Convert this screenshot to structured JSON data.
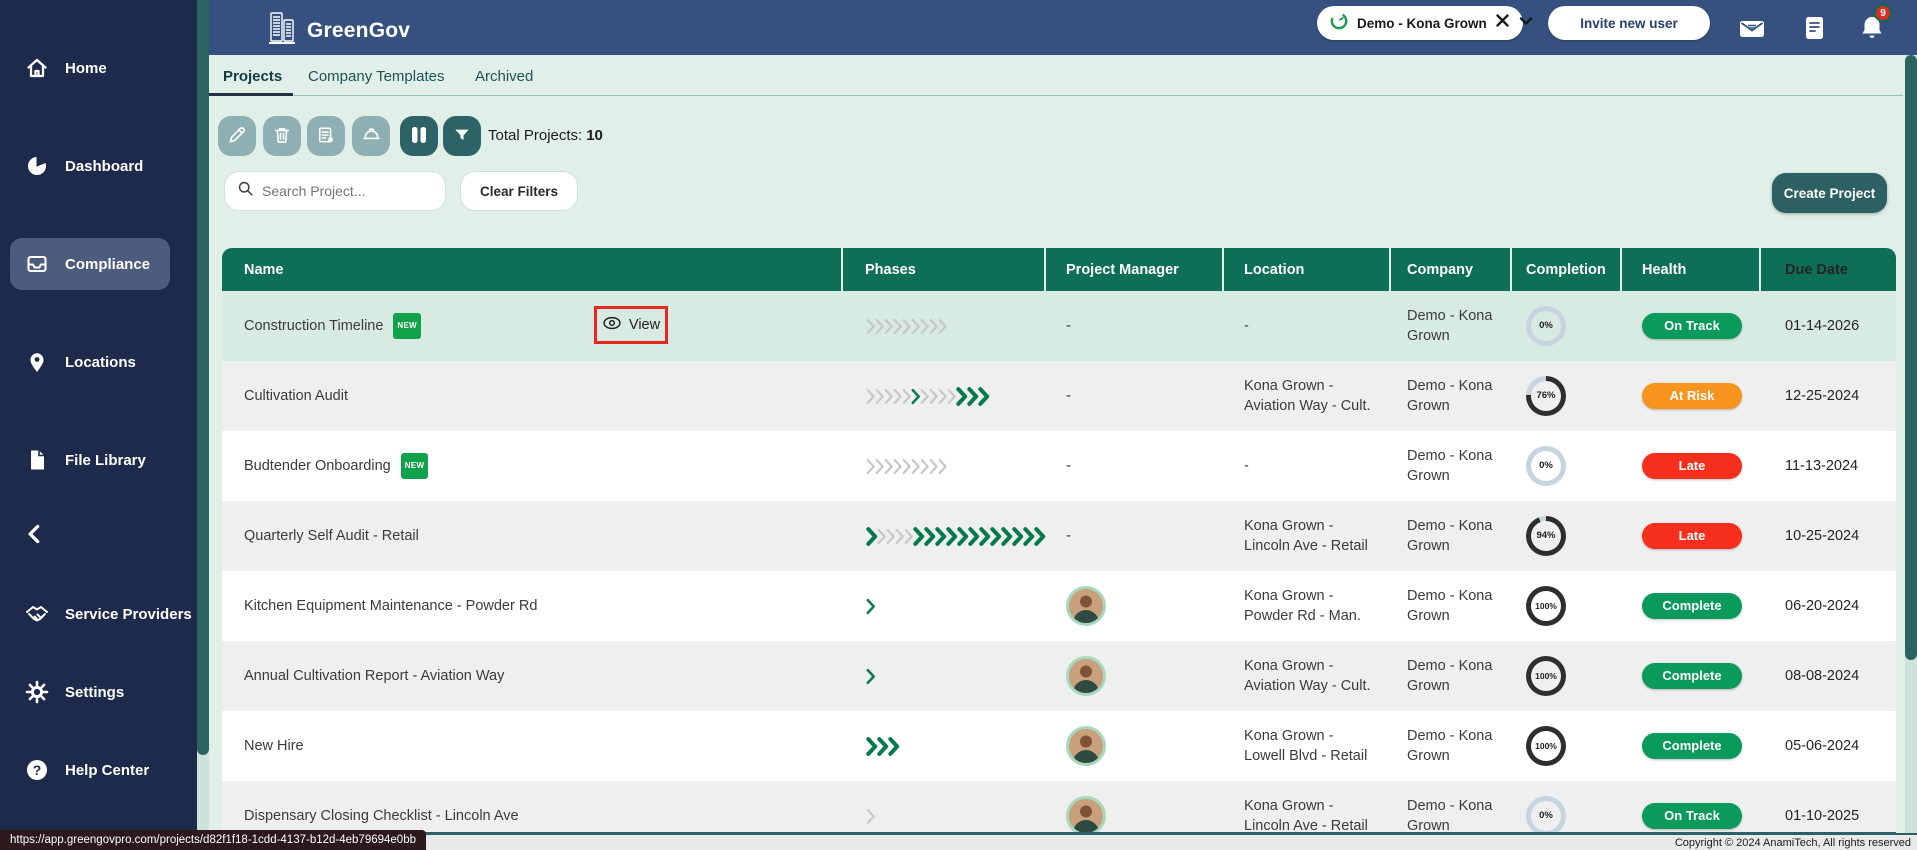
{
  "colors": {
    "sidebar_navy": "#1d2a4b",
    "header_navy": "#36517f",
    "active_item": "#4d5c7d",
    "teal_accent": "#2d6366",
    "muted_button": "#8fb0b3",
    "mint_bg": "#e1efe9",
    "table_header_green": "#0d6f55",
    "row_highlight": "#d8ebe2",
    "health_green": "#0a9a5c",
    "health_orange": "#f7941e",
    "health_red": "#f62e1e",
    "new_badge_green": "#12a14b",
    "annotation_red": "#e8281e",
    "chevron_gray": "#c7c7c7",
    "chevron_green": "#0a7c50",
    "donut_dark": "#2e2e2e",
    "donut_light": "#c7d3df"
  },
  "sidebar": {
    "items": [
      {
        "label": "Home",
        "icon": "home-icon",
        "active": false
      },
      {
        "label": "Dashboard",
        "icon": "dashboard-icon",
        "active": false
      },
      {
        "label": "Compliance",
        "icon": "compliance-icon",
        "active": true
      },
      {
        "label": "Locations",
        "icon": "location-pin-icon",
        "active": false
      },
      {
        "label": "File Library",
        "icon": "file-icon",
        "active": false
      },
      {
        "label": "Service Providers",
        "icon": "handshake-icon",
        "active": false
      },
      {
        "label": "Settings",
        "icon": "gear-icon",
        "active": false
      },
      {
        "label": "Help Center",
        "icon": "help-icon",
        "active": false
      }
    ],
    "collapse_icon": "chevron-left-icon"
  },
  "header": {
    "app_name": "GreenGov",
    "logo_icon": "buildings-icon",
    "company_selector": {
      "icon": "green-leaf-logo",
      "label": "Demo - Kona Grown",
      "close_icon": "close-icon",
      "chevron_icon": "chevron-down-icon"
    },
    "invite_button": "Invite new user",
    "actions": [
      {
        "icon": "mail-icon"
      },
      {
        "icon": "notes-icon"
      },
      {
        "icon": "bell-icon",
        "badge": "9"
      }
    ]
  },
  "tabs": {
    "items": [
      {
        "label": "Projects",
        "active": true
      },
      {
        "label": "Company Templates",
        "active": false
      },
      {
        "label": "Archived",
        "active": false
      }
    ]
  },
  "toolbar": {
    "buttons": [
      {
        "icon": "edit-icon",
        "enabled": false
      },
      {
        "icon": "delete-icon",
        "enabled": false
      },
      {
        "icon": "clipboard-pin-icon",
        "enabled": false
      },
      {
        "icon": "hard-hat-icon",
        "enabled": false
      },
      {
        "icon": "columns-icon",
        "enabled": true
      },
      {
        "icon": "filter-icon",
        "enabled": true
      }
    ],
    "total_label": "Total Projects:",
    "total_value": "10"
  },
  "filters": {
    "search_icon": "search-icon",
    "search_placeholder": "Search Project...",
    "clear_button": "Clear Filters",
    "create_button": "Create Project"
  },
  "new_badge_label": "NEW",
  "table": {
    "columns": [
      "Name",
      "Phases",
      "Project Manager",
      "Location",
      "Company",
      "Completion",
      "Health",
      "Due Date"
    ],
    "rows": [
      {
        "name": "Construction Timeline",
        "new": true,
        "view_button": "View",
        "phases": [
          {
            "count": 9,
            "style": "gray"
          }
        ],
        "manager": "-",
        "location": "-",
        "company": "Demo - Kona Grown",
        "completion": 0,
        "health": {
          "label": "On Track",
          "tone": "green"
        },
        "due": "01-14-2026"
      },
      {
        "name": "Cultivation Audit",
        "new": false,
        "phases": [
          {
            "count": 5,
            "style": "gray"
          },
          {
            "count": 1,
            "style": "green"
          },
          {
            "count": 4,
            "style": "gray"
          },
          {
            "count": 3,
            "style": "green-bold"
          }
        ],
        "manager": "-",
        "location": "Kona Grown - Aviation Way - Cult.",
        "company": "Demo - Kona Grown",
        "completion": 76,
        "health": {
          "label": "At Risk",
          "tone": "orange"
        },
        "due": "12-25-2024"
      },
      {
        "name": "Budtender Onboarding",
        "new": true,
        "phases": [
          {
            "count": 9,
            "style": "gray"
          }
        ],
        "manager": "-",
        "location": "-",
        "company": "Demo - Kona Grown",
        "completion": 0,
        "health": {
          "label": "Late",
          "tone": "red"
        },
        "due": "11-13-2024"
      },
      {
        "name": "Quarterly Self Audit - Retail",
        "new": false,
        "phases": [
          {
            "count": 1,
            "style": "green-bold"
          },
          {
            "count": 4,
            "style": "gray"
          },
          {
            "count": 12,
            "style": "green-bold"
          }
        ],
        "manager": "-",
        "location": "Kona Grown - Lincoln Ave - Retail",
        "company": "Demo - Kona Grown",
        "completion": 94,
        "health": {
          "label": "Late",
          "tone": "red"
        },
        "due": "10-25-2024"
      },
      {
        "name": "Kitchen Equipment Maintenance - Powder Rd",
        "new": false,
        "phases": [
          {
            "count": 1,
            "style": "green"
          }
        ],
        "manager": "avatar",
        "location": "Kona Grown - Powder Rd - Man.",
        "company": "Demo - Kona Grown",
        "completion": 100,
        "health": {
          "label": "Complete",
          "tone": "green"
        },
        "due": "06-20-2024"
      },
      {
        "name": "Annual Cultivation Report - Aviation Way",
        "new": false,
        "phases": [
          {
            "count": 1,
            "style": "green"
          }
        ],
        "manager": "avatar",
        "location": "Kona Grown - Aviation Way - Cult.",
        "company": "Demo - Kona Grown",
        "completion": 100,
        "health": {
          "label": "Complete",
          "tone": "green"
        },
        "due": "08-08-2024"
      },
      {
        "name": "New Hire",
        "new": false,
        "phases": [
          {
            "count": 3,
            "style": "green-bold"
          }
        ],
        "manager": "avatar",
        "location": "Kona Grown - Lowell Blvd - Retail",
        "company": "Demo - Kona Grown",
        "completion": 100,
        "health": {
          "label": "Complete",
          "tone": "green"
        },
        "due": "05-06-2024"
      },
      {
        "name": "Dispensary Closing Checklist - Lincoln Ave",
        "new": false,
        "phases": [
          {
            "count": 1,
            "style": "gray"
          }
        ],
        "manager": "avatar",
        "location": "Kona Grown - Lincoln Ave - Retail",
        "company": "Demo - Kona Grown",
        "completion": 0,
        "health": {
          "label": "On Track",
          "tone": "green"
        },
        "due": "01-10-2025"
      }
    ]
  },
  "footer": {
    "copyright": "Copyright © 2024 AnamiTech, All rights reserved",
    "url_tooltip": "https://app.greengovpro.com/projects/d82f1f18-1cdd-4137-b12d-4eb79694e0bb"
  }
}
